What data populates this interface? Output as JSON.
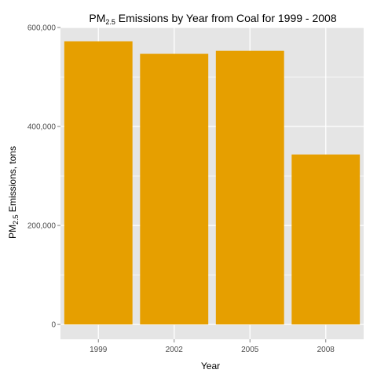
{
  "chart_data": {
    "type": "bar",
    "title": {
      "pre": "PM",
      "sub": "2.5",
      "post": " Emissions by Year from Coal for 1999 - 2008"
    },
    "xlabel": "Year",
    "ylabel": {
      "pre": "PM",
      "sub": "2.5",
      "post": " Emissions, tons"
    },
    "categories": [
      "1999",
      "2002",
      "2005",
      "2008"
    ],
    "values": [
      572126,
      546789,
      552881,
      343432
    ],
    "ylim": [
      -30000,
      600000
    ],
    "y_ticks": [
      0,
      200000,
      400000,
      600000
    ],
    "y_tick_labels": [
      "0",
      "200,000",
      "400,000",
      "600,000"
    ],
    "bar_color": "#e69f00",
    "panel_background": "#e5e5e5",
    "grid_color": "#ffffff",
    "grid": true,
    "legend": "none"
  }
}
